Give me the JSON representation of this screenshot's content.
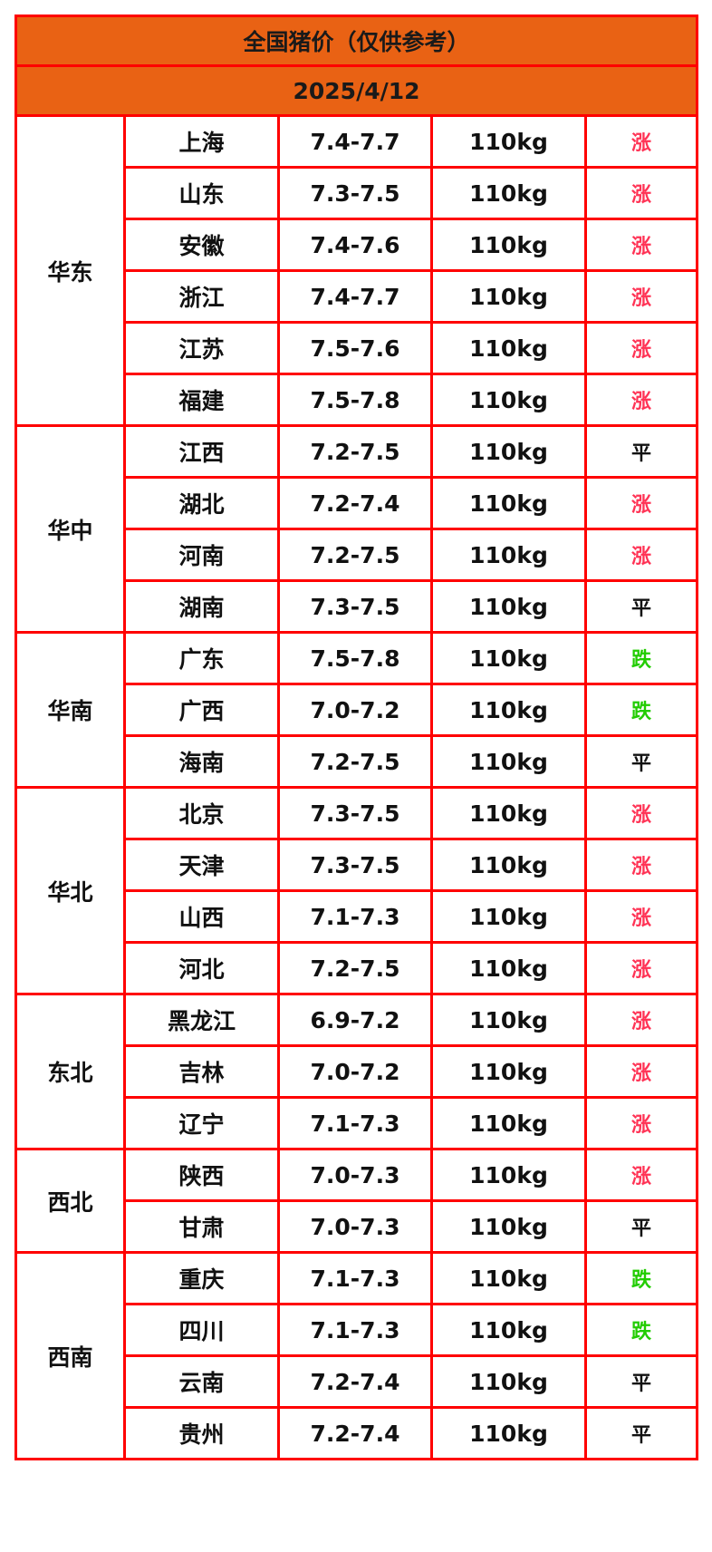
{
  "title": "全国猪价（仅供参考）",
  "date": "2025/4/12",
  "colors": {
    "header_bg": "#e96214",
    "border": "#ff0000",
    "rise": "#ff3355",
    "fall": "#22cc00",
    "flat": "#111111"
  },
  "regions": [
    {
      "name": "华东",
      "rows": [
        {
          "province": "上海",
          "price": "7.4-7.7",
          "weight": "110kg",
          "trend": "涨"
        },
        {
          "province": "山东",
          "price": "7.3-7.5",
          "weight": "110kg",
          "trend": "涨"
        },
        {
          "province": "安徽",
          "price": "7.4-7.6",
          "weight": "110kg",
          "trend": "涨"
        },
        {
          "province": "浙江",
          "price": "7.4-7.7",
          "weight": "110kg",
          "trend": "涨"
        },
        {
          "province": "江苏",
          "price": "7.5-7.6",
          "weight": "110kg",
          "trend": "涨"
        },
        {
          "province": "福建",
          "price": "7.5-7.8",
          "weight": "110kg",
          "trend": "涨"
        }
      ]
    },
    {
      "name": "华中",
      "rows": [
        {
          "province": "江西",
          "price": "7.2-7.5",
          "weight": "110kg",
          "trend": "平"
        },
        {
          "province": "湖北",
          "price": "7.2-7.4",
          "weight": "110kg",
          "trend": "涨"
        },
        {
          "province": "河南",
          "price": "7.2-7.5",
          "weight": "110kg",
          "trend": "涨"
        },
        {
          "province": "湖南",
          "price": "7.3-7.5",
          "weight": "110kg",
          "trend": "平"
        }
      ]
    },
    {
      "name": "华南",
      "rows": [
        {
          "province": "广东",
          "price": "7.5-7.8",
          "weight": "110kg",
          "trend": "跌"
        },
        {
          "province": "广西",
          "price": "7.0-7.2",
          "weight": "110kg",
          "trend": "跌"
        },
        {
          "province": "海南",
          "price": "7.2-7.5",
          "weight": "110kg",
          "trend": "平"
        }
      ]
    },
    {
      "name": "华北",
      "rows": [
        {
          "province": "北京",
          "price": "7.3-7.5",
          "weight": "110kg",
          "trend": "涨"
        },
        {
          "province": "天津",
          "price": "7.3-7.5",
          "weight": "110kg",
          "trend": "涨"
        },
        {
          "province": "山西",
          "price": "7.1-7.3",
          "weight": "110kg",
          "trend": "涨"
        },
        {
          "province": "河北",
          "price": "7.2-7.5",
          "weight": "110kg",
          "trend": "涨"
        }
      ]
    },
    {
      "name": "东北",
      "rows": [
        {
          "province": "黑龙江",
          "price": "6.9-7.2",
          "weight": "110kg",
          "trend": "涨"
        },
        {
          "province": "吉林",
          "price": "7.0-7.2",
          "weight": "110kg",
          "trend": "涨"
        },
        {
          "province": "辽宁",
          "price": "7.1-7.3",
          "weight": "110kg",
          "trend": "涨"
        }
      ]
    },
    {
      "name": "西北",
      "rows": [
        {
          "province": "陕西",
          "price": "7.0-7.3",
          "weight": "110kg",
          "trend": "涨"
        },
        {
          "province": "甘肃",
          "price": "7.0-7.3",
          "weight": "110kg",
          "trend": "平"
        }
      ]
    },
    {
      "name": "西南",
      "rows": [
        {
          "province": "重庆",
          "price": "7.1-7.3",
          "weight": "110kg",
          "trend": "跌"
        },
        {
          "province": "四川",
          "price": "7.1-7.3",
          "weight": "110kg",
          "trend": "跌"
        },
        {
          "province": "云南",
          "price": "7.2-7.4",
          "weight": "110kg",
          "trend": "平"
        },
        {
          "province": "贵州",
          "price": "7.2-7.4",
          "weight": "110kg",
          "trend": "平"
        }
      ]
    }
  ]
}
